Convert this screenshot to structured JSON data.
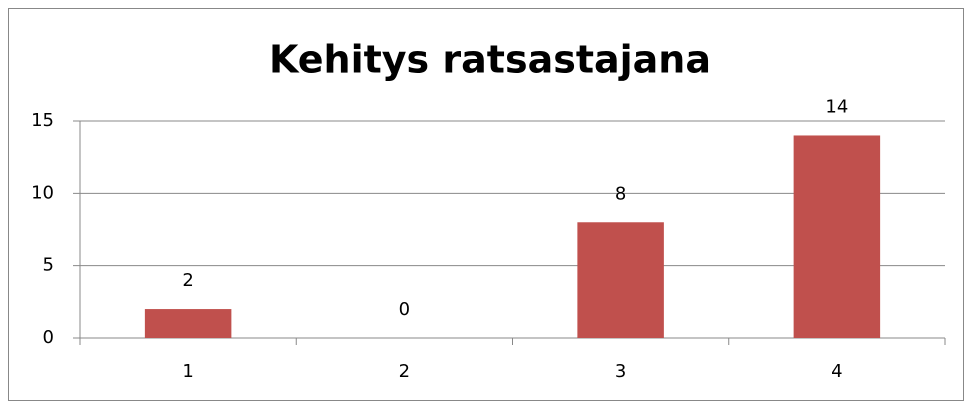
{
  "chart_data": {
    "type": "bar",
    "title": "Kehitys ratsastajana",
    "categories": [
      "1",
      "2",
      "3",
      "4"
    ],
    "values": [
      2,
      0,
      8,
      14
    ],
    "color": "#c0504d",
    "ylim": [
      0,
      15
    ],
    "yticks": [
      0,
      5,
      10,
      15
    ],
    "grid": true
  }
}
